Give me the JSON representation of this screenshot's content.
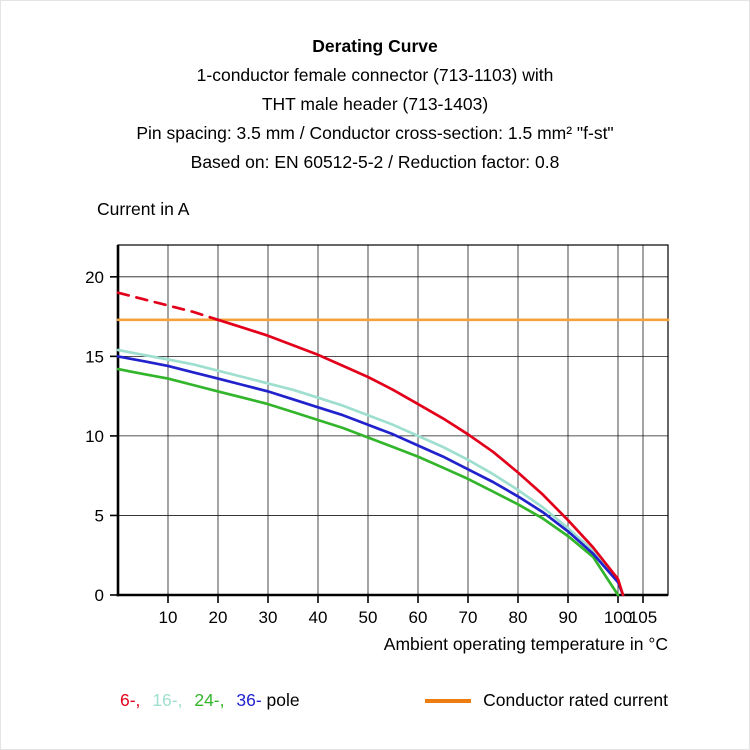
{
  "header": {
    "title": "Derating Curve",
    "lines": [
      "1-conductor female connector (713-1103) with",
      "THT male header (713-1403)",
      "Pin spacing: 3.5 mm / Conductor cross-section: 1.5 mm² \"f-st\"",
      "Based on: EN 60512-5-2 / Reduction factor: 0.8"
    ]
  },
  "legend": {
    "poles": [
      {
        "label": "6-,",
        "color": "#e2001a"
      },
      {
        "label": "16-,",
        "color": "#9fdfcf"
      },
      {
        "label": "24-,",
        "color": "#33b52b"
      },
      {
        "label": "36-",
        "color": "#2222cc"
      }
    ],
    "pole_suffix": "pole",
    "rated": {
      "label": "Conductor rated current",
      "color": "#ee7d11"
    }
  },
  "chart_data": {
    "type": "line",
    "title": "Derating Curve",
    "ylabel": "Current in A",
    "xlabel": "Ambient operating temperature in °C",
    "xlim": [
      0,
      110
    ],
    "ylim": [
      0,
      22
    ],
    "xticks": [
      10,
      20,
      30,
      40,
      50,
      60,
      70,
      80,
      90,
      100,
      105
    ],
    "yticks": [
      0,
      5,
      10,
      15,
      20
    ],
    "grid": "on",
    "series": [
      {
        "name": "Conductor rated current",
        "color": "#f2a33c",
        "points": [
          [
            0,
            17.3
          ],
          [
            110,
            17.3
          ]
        ]
      },
      {
        "name": "16-pole",
        "color": "#9fdfcf",
        "points": [
          [
            0,
            15.4
          ],
          [
            5,
            15.1
          ],
          [
            10,
            14.8
          ],
          [
            15,
            14.5
          ],
          [
            20,
            14.1
          ],
          [
            25,
            13.7
          ],
          [
            30,
            13.3
          ],
          [
            35,
            12.9
          ],
          [
            40,
            12.4
          ],
          [
            45,
            11.9
          ],
          [
            50,
            11.3
          ],
          [
            55,
            10.7
          ],
          [
            60,
            10.0
          ],
          [
            65,
            9.3
          ],
          [
            70,
            8.5
          ],
          [
            75,
            7.6
          ],
          [
            80,
            6.6
          ],
          [
            85,
            5.5
          ],
          [
            90,
            4.2
          ],
          [
            95,
            2.8
          ],
          [
            100,
            0.9
          ],
          [
            101,
            0
          ]
        ]
      },
      {
        "name": "24-pole",
        "color": "#33b52b",
        "points": [
          [
            0,
            14.2
          ],
          [
            5,
            13.9
          ],
          [
            10,
            13.6
          ],
          [
            15,
            13.2
          ],
          [
            20,
            12.8
          ],
          [
            25,
            12.4
          ],
          [
            30,
            12.0
          ],
          [
            35,
            11.5
          ],
          [
            40,
            11.0
          ],
          [
            45,
            10.5
          ],
          [
            50,
            9.9
          ],
          [
            55,
            9.3
          ],
          [
            60,
            8.7
          ],
          [
            65,
            8.0
          ],
          [
            70,
            7.3
          ],
          [
            75,
            6.5
          ],
          [
            80,
            5.7
          ],
          [
            85,
            4.8
          ],
          [
            90,
            3.7
          ],
          [
            95,
            2.4
          ],
          [
            100,
            0
          ]
        ]
      },
      {
        "name": "36-pole",
        "color": "#2222cc",
        "points": [
          [
            0,
            15.0
          ],
          [
            5,
            14.7
          ],
          [
            10,
            14.4
          ],
          [
            15,
            14.0
          ],
          [
            20,
            13.6
          ],
          [
            25,
            13.2
          ],
          [
            30,
            12.8
          ],
          [
            35,
            12.3
          ],
          [
            40,
            11.8
          ],
          [
            45,
            11.3
          ],
          [
            50,
            10.7
          ],
          [
            55,
            10.1
          ],
          [
            60,
            9.4
          ],
          [
            65,
            8.7
          ],
          [
            70,
            7.9
          ],
          [
            75,
            7.1
          ],
          [
            80,
            6.2
          ],
          [
            85,
            5.2
          ],
          [
            90,
            4.0
          ],
          [
            95,
            2.6
          ],
          [
            100,
            0.8
          ],
          [
            101,
            0
          ]
        ]
      },
      {
        "name": "6-pole",
        "color": "#e2001a",
        "dash_until": 20,
        "points": [
          [
            0,
            19.0
          ],
          [
            5,
            18.6
          ],
          [
            10,
            18.2
          ],
          [
            15,
            17.8
          ],
          [
            20,
            17.3
          ],
          [
            25,
            16.8
          ],
          [
            30,
            16.3
          ],
          [
            35,
            15.7
          ],
          [
            40,
            15.1
          ],
          [
            45,
            14.4
          ],
          [
            50,
            13.7
          ],
          [
            55,
            12.9
          ],
          [
            60,
            12.0
          ],
          [
            65,
            11.1
          ],
          [
            70,
            10.1
          ],
          [
            75,
            9.0
          ],
          [
            80,
            7.7
          ],
          [
            85,
            6.3
          ],
          [
            90,
            4.7
          ],
          [
            95,
            3.0
          ],
          [
            100,
            1.0
          ],
          [
            101,
            0
          ]
        ]
      }
    ]
  }
}
